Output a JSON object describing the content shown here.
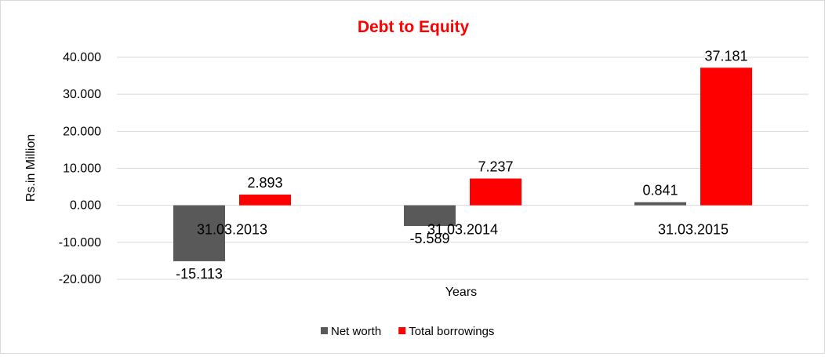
{
  "chart_data": {
    "type": "bar",
    "title": "Debt to Equity",
    "title_color": "#ff0000",
    "xlabel": "Years",
    "ylabel": "Rs.in Million",
    "categories": [
      "31.03.2013",
      "31.03.2014",
      "31.03.2015"
    ],
    "series": [
      {
        "name": "Net worth",
        "color": "#595959",
        "values": [
          -15.113,
          -5.589,
          0.841
        ],
        "labels": [
          "-15.113",
          "-5.589",
          "0.841"
        ]
      },
      {
        "name": "Total borrowings",
        "color": "#ff0000",
        "values": [
          2.893,
          7.237,
          37.181
        ],
        "labels": [
          "2.893",
          "7.237",
          "37.181"
        ]
      }
    ],
    "ylim": [
      -20,
      40
    ],
    "yticks": [
      40,
      30,
      20,
      10,
      0,
      -10,
      -20
    ],
    "ytick_labels": [
      "40.000",
      "30.000",
      "20.000",
      "10.000",
      "0.000",
      "-10.000",
      "-20.000"
    ],
    "grid": true,
    "legend_position": "bottom"
  }
}
